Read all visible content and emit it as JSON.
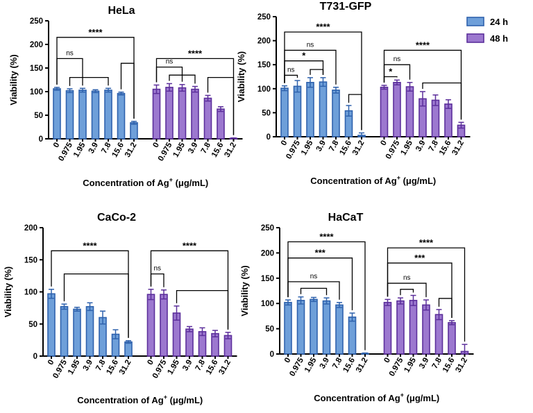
{
  "legend": {
    "items": [
      {
        "label": "24 h",
        "fill": "#6e9fd9",
        "stroke": "#2f62ad"
      },
      {
        "label": "48 h",
        "fill": "#9c78cf",
        "stroke": "#5c2f9b"
      }
    ]
  },
  "chart_data": [
    {
      "type": "bar",
      "title": "HeLa",
      "ylabel": "Viability (%)",
      "xlabel_main": "Concentration of Ag",
      "xlabel_sup": "+",
      "xlabel_units": " (μg/mL)",
      "ylim": [
        0,
        250
      ],
      "yticks": [
        0,
        50,
        100,
        150,
        200,
        250
      ],
      "categories": [
        "0",
        "0.975",
        "1.95",
        "3.9",
        "7.8",
        "15.6",
        "31.2"
      ],
      "series": [
        {
          "name": "24 h",
          "values": [
            106,
            102,
            103,
            101,
            103,
            96,
            34
          ],
          "errors": [
            3,
            4,
            4,
            3,
            4,
            3,
            3
          ]
        },
        {
          "name": "48 h",
          "values": [
            105,
            109,
            108,
            105,
            86,
            63,
            1
          ],
          "errors": [
            9,
            8,
            7,
            6,
            6,
            5,
            1
          ]
        }
      ],
      "annotations": [
        {
          "label": "****",
          "from": [
            0,
            0
          ],
          "to": [
            0,
            6
          ],
          "level": 215
        },
        {
          "label": "ns",
          "from": [
            0,
            0
          ],
          "to": [
            0,
            2
          ],
          "level": 170
        },
        {
          "label": "",
          "from": [
            0,
            1
          ],
          "to": [
            0,
            4
          ],
          "level": 130
        },
        {
          "label": "",
          "from": [
            0,
            5
          ],
          "to": [
            0,
            6
          ],
          "level": 160
        },
        {
          "label": "****",
          "from": [
            1,
            0
          ],
          "to": [
            1,
            6
          ],
          "level": 170
        },
        {
          "label": "ns",
          "from": [
            1,
            0
          ],
          "to": [
            1,
            2
          ],
          "level": 152
        },
        {
          "label": "",
          "from": [
            1,
            1
          ],
          "to": [
            1,
            3
          ],
          "level": 135
        },
        {
          "label": "",
          "from": [
            1,
            4
          ],
          "to": [
            1,
            6
          ],
          "level": 130
        }
      ]
    },
    {
      "type": "bar",
      "title": "T731-GFP",
      "ylabel": "Viability (%)",
      "xlabel_main": "Concentration of Ag",
      "xlabel_sup": "+",
      "xlabel_units": " (μg/mL)",
      "ylim": [
        0,
        250
      ],
      "yticks": [
        0,
        50,
        100,
        150,
        200,
        250
      ],
      "categories": [
        "0",
        "0.975",
        "1.95",
        "3.9",
        "7.8",
        "15.6",
        "31.2"
      ],
      "series": [
        {
          "name": "24 h",
          "values": [
            101,
            105,
            113,
            114,
            97,
            54,
            3
          ],
          "errors": [
            5,
            12,
            10,
            9,
            6,
            11,
            5
          ]
        },
        {
          "name": "48 h",
          "values": [
            103,
            113,
            104,
            79,
            76,
            68,
            24
          ],
          "errors": [
            4,
            5,
            9,
            15,
            11,
            9,
            6
          ]
        }
      ],
      "annotations": [
        {
          "label": "****",
          "from": [
            0,
            0
          ],
          "to": [
            0,
            6
          ],
          "level": 218
        },
        {
          "label": "ns",
          "from": [
            0,
            0
          ],
          "to": [
            0,
            4
          ],
          "level": 180
        },
        {
          "label": "*",
          "from": [
            0,
            0
          ],
          "to": [
            0,
            3
          ],
          "level": 158
        },
        {
          "label": "ns",
          "from": [
            0,
            0
          ],
          "to": [
            0,
            1
          ],
          "level": 128
        },
        {
          "label": "",
          "from": [
            0,
            2
          ],
          "to": [
            0,
            3
          ],
          "level": 140
        },
        {
          "label": "",
          "from": [
            0,
            5
          ],
          "to": [
            0,
            6
          ],
          "level": 88
        },
        {
          "label": "****",
          "from": [
            1,
            0
          ],
          "to": [
            1,
            6
          ],
          "level": 180
        },
        {
          "label": "ns",
          "from": [
            1,
            0
          ],
          "to": [
            1,
            2
          ],
          "level": 150
        },
        {
          "label": "*",
          "from": [
            1,
            0
          ],
          "to": [
            1,
            1
          ],
          "level": 125
        },
        {
          "label": "",
          "from": [
            1,
            3
          ],
          "to": [
            1,
            6
          ],
          "level": 112
        }
      ]
    },
    {
      "type": "bar",
      "title": "CaCo-2",
      "ylabel": "Viability (%)",
      "xlabel_main": "Concentration of Ag",
      "xlabel_sup": "+",
      "xlabel_units": " (μg/mL)",
      "ylim": [
        0,
        200
      ],
      "yticks": [
        0,
        50,
        100,
        150,
        200
      ],
      "categories": [
        "0",
        "0.975",
        "1.95",
        "3.9",
        "7.8",
        "15.6",
        "31.2"
      ],
      "series": [
        {
          "name": "24 h",
          "values": [
            97,
            77,
            73,
            77,
            60,
            34,
            22
          ],
          "errors": [
            7,
            4,
            3,
            6,
            10,
            7,
            2
          ]
        },
        {
          "name": "48 h",
          "values": [
            96,
            96,
            67,
            42,
            38,
            35,
            32
          ],
          "errors": [
            8,
            7,
            11,
            4,
            6,
            5,
            5
          ]
        }
      ],
      "annotations": [
        {
          "label": "****",
          "from": [
            0,
            0
          ],
          "to": [
            0,
            6
          ],
          "level": 164
        },
        {
          "label": "",
          "from": [
            0,
            1
          ],
          "to": [
            0,
            6
          ],
          "level": 128
        },
        {
          "label": "****",
          "from": [
            1,
            0
          ],
          "to": [
            1,
            6
          ],
          "level": 164
        },
        {
          "label": "ns",
          "from": [
            1,
            0
          ],
          "to": [
            1,
            1
          ],
          "level": 128
        },
        {
          "label": "",
          "from": [
            1,
            2
          ],
          "to": [
            1,
            6
          ],
          "level": 102
        }
      ]
    },
    {
      "type": "bar",
      "title": "HaCaT",
      "ylabel": "Viability (%)",
      "xlabel_main": "Concentration of Ag",
      "xlabel_sup": "+",
      "xlabel_units": " (μg/mL)",
      "ylim": [
        0,
        250
      ],
      "yticks": [
        0,
        50,
        100,
        150,
        200,
        250
      ],
      "categories": [
        "0",
        "0.975",
        "1.95",
        "3.9",
        "7.8",
        "15.6",
        "31.2"
      ],
      "series": [
        {
          "name": "24 h",
          "values": [
            102,
            106,
            108,
            105,
            97,
            73,
            0
          ],
          "errors": [
            5,
            7,
            4,
            6,
            5,
            8,
            2
          ]
        },
        {
          "name": "48 h",
          "values": [
            102,
            105,
            106,
            97,
            78,
            62,
            5
          ],
          "errors": [
            6,
            6,
            10,
            10,
            10,
            4,
            14
          ]
        }
      ],
      "annotations": [
        {
          "label": "****",
          "from": [
            0,
            0
          ],
          "to": [
            0,
            6
          ],
          "level": 222
        },
        {
          "label": "***",
          "from": [
            0,
            0
          ],
          "to": [
            0,
            5
          ],
          "level": 190
        },
        {
          "label": "ns",
          "from": [
            0,
            0
          ],
          "to": [
            0,
            4
          ],
          "level": 143
        },
        {
          "label": "",
          "from": [
            0,
            1
          ],
          "to": [
            0,
            3
          ],
          "level": 130
        },
        {
          "label": "****",
          "from": [
            1,
            0
          ],
          "to": [
            1,
            6
          ],
          "level": 210
        },
        {
          "label": "***",
          "from": [
            1,
            0
          ],
          "to": [
            1,
            5
          ],
          "level": 180
        },
        {
          "label": "ns",
          "from": [
            1,
            0
          ],
          "to": [
            1,
            3
          ],
          "level": 140
        },
        {
          "label": "",
          "from": [
            1,
            1
          ],
          "to": [
            1,
            2
          ],
          "level": 128
        },
        {
          "label": "",
          "from": [
            1,
            4
          ],
          "to": [
            1,
            5
          ],
          "level": 110
        }
      ]
    }
  ]
}
